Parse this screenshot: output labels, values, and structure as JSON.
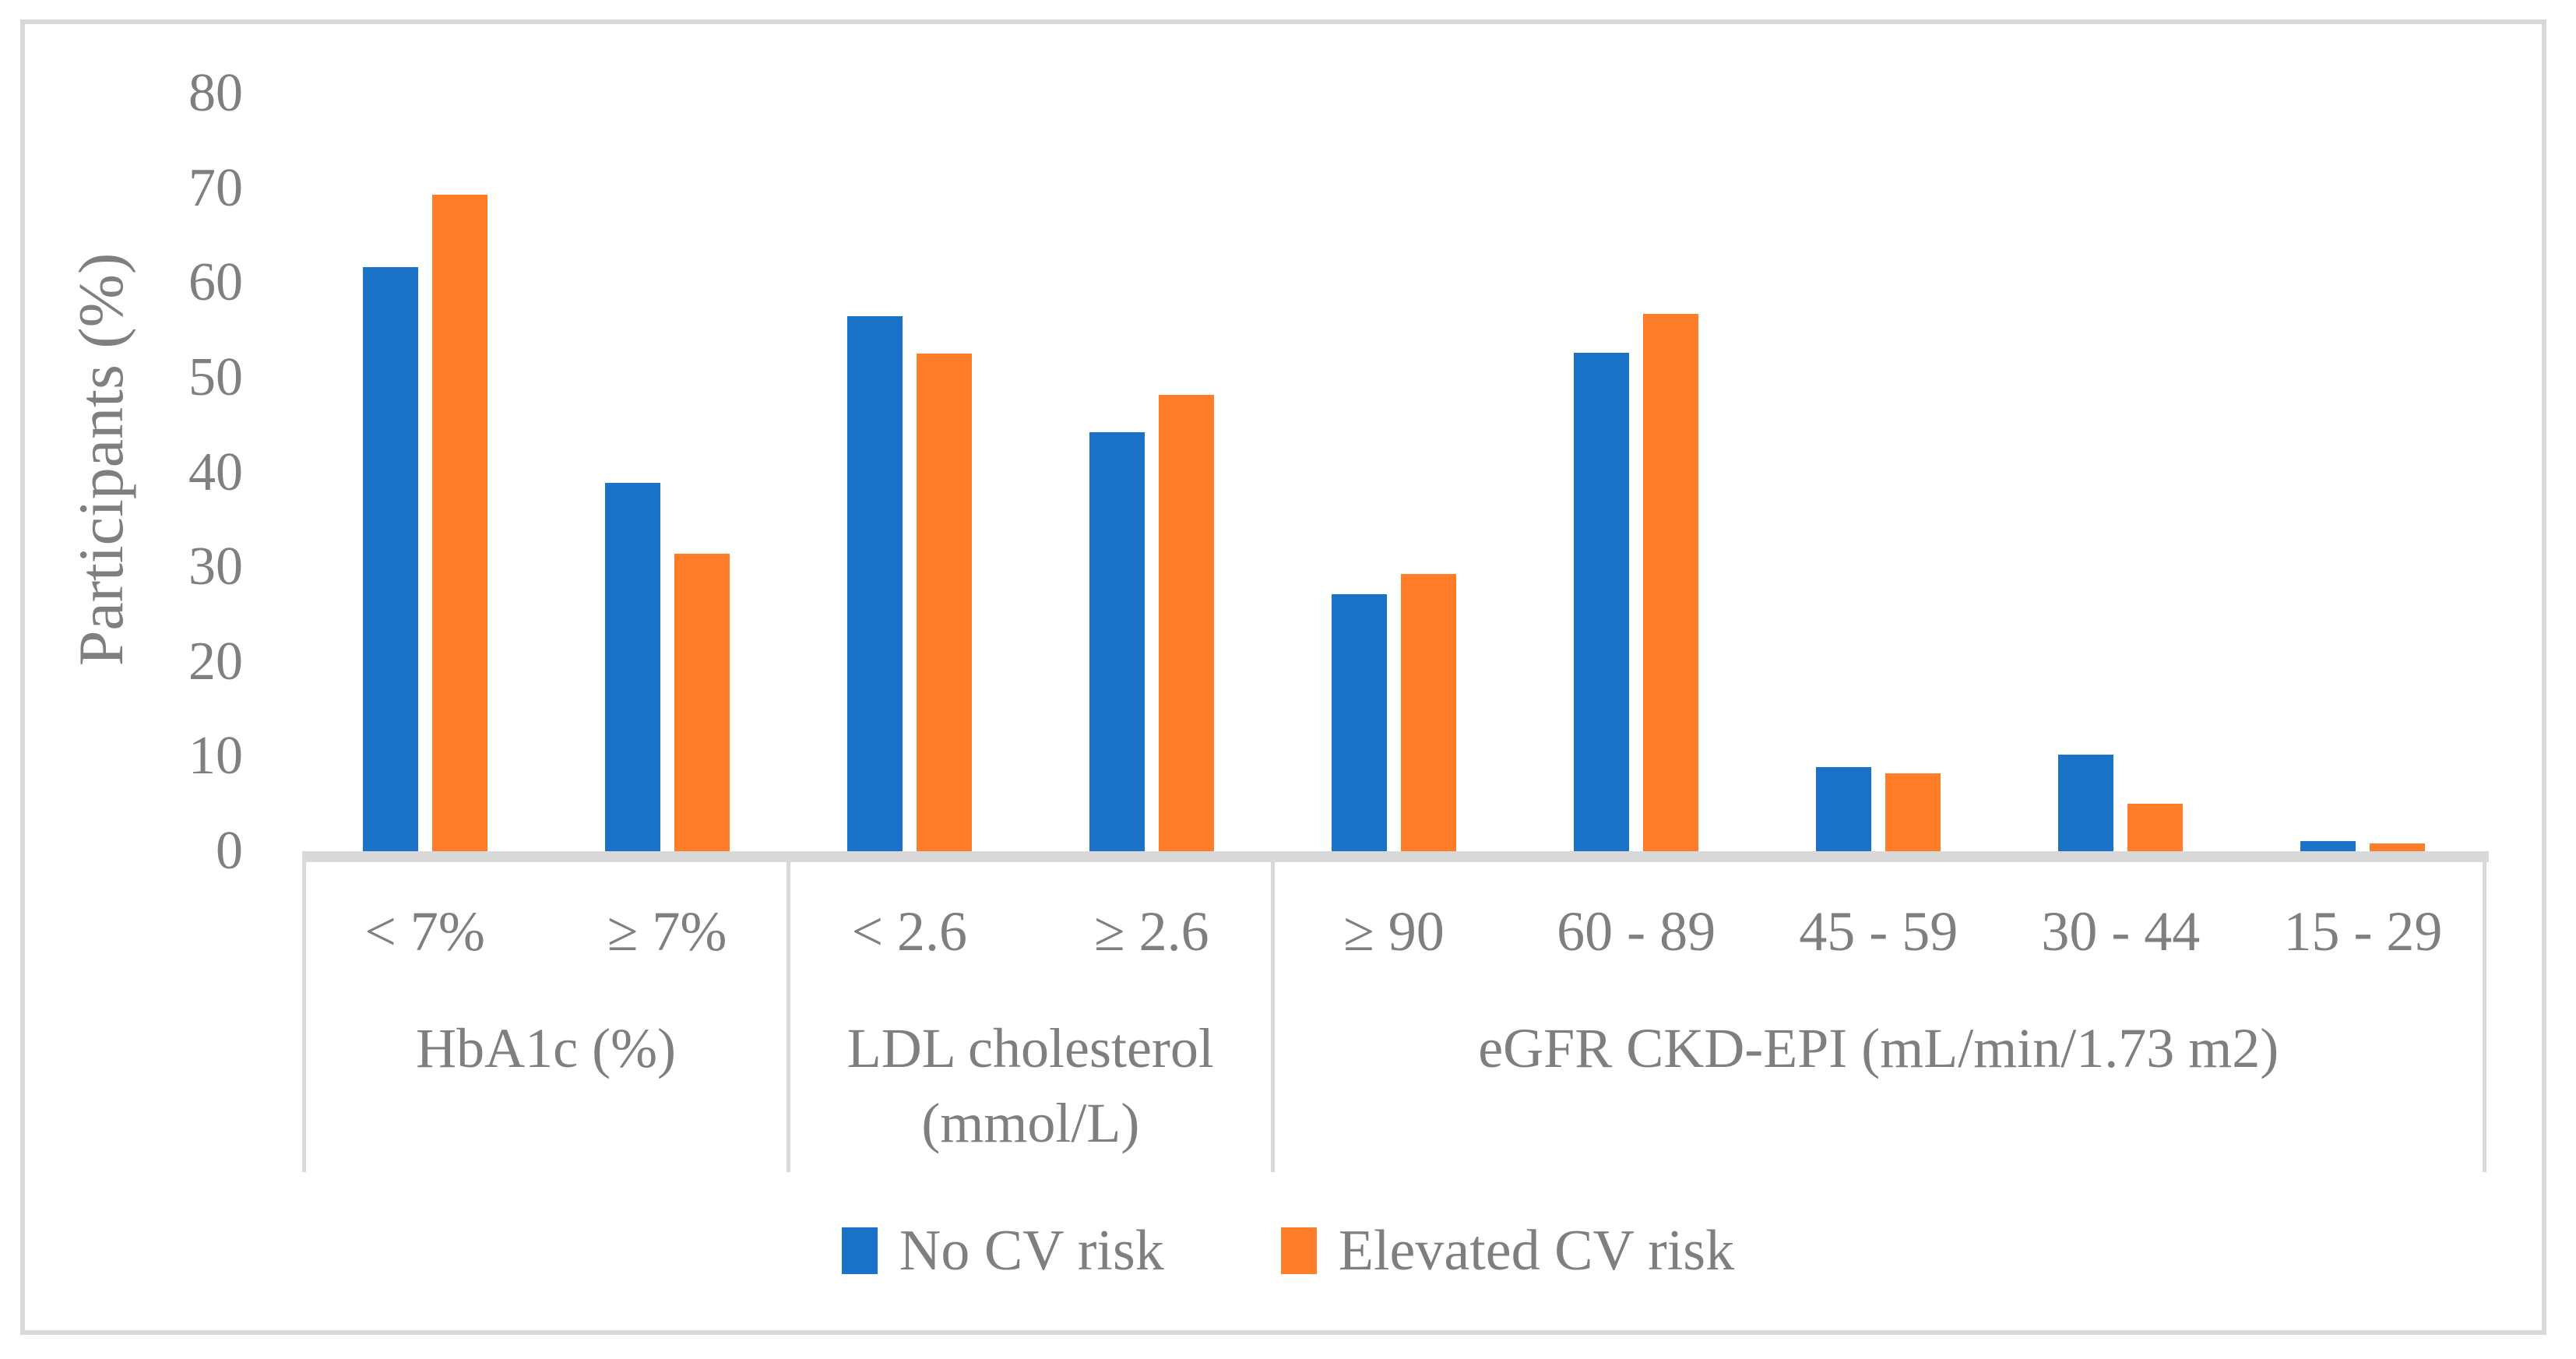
{
  "chart_data": {
    "type": "bar",
    "title": "",
    "xlabel": "",
    "ylabel": "Participants (%)",
    "ylim": [
      0,
      80
    ],
    "yticks": [
      0,
      10,
      20,
      30,
      40,
      50,
      60,
      70,
      80
    ],
    "grid": false,
    "legend_position": "bottom-center",
    "series": [
      {
        "name": "No CV risk",
        "color": "#1B73C7"
      },
      {
        "name": "Elevated CV risk",
        "color": "#FF7D28"
      }
    ],
    "groups": [
      {
        "label": "HbA1c (%)",
        "label_lines": [
          "HbA1c (%)"
        ],
        "categories": [
          {
            "label": "< 7%",
            "values": [
              61.7,
              69.3
            ]
          },
          {
            "label": "≥ 7%",
            "values": [
              38.9,
              31.4
            ]
          }
        ]
      },
      {
        "label": "LDL cholesterol (mmol/L)",
        "label_lines": [
          "LDL cholesterol",
          "(mmol/L)"
        ],
        "categories": [
          {
            "label": "< 2.6",
            "values": [
              56.5,
              52.5
            ]
          },
          {
            "label": "≥ 2.6",
            "values": [
              44.2,
              48.2
            ]
          }
        ]
      },
      {
        "label": "eGFR CKD-EPI (mL/min/1.73 m2)",
        "label_lines": [
          "eGFR CKD-EPI (mL/min/1.73 m2)"
        ],
        "categories": [
          {
            "label": "≥ 90",
            "values": [
              27.1,
              29.3
            ]
          },
          {
            "label": "60 - 89",
            "values": [
              52.6,
              56.7
            ]
          },
          {
            "label": "45 - 59",
            "values": [
              8.9,
              8.2
            ]
          },
          {
            "label": "30 - 44",
            "values": [
              10.2,
              5.0
            ]
          },
          {
            "label": "15 - 29",
            "values": [
              1.1,
              0.8
            ]
          }
        ]
      }
    ],
    "colors": {
      "text": "#7F7F7F",
      "axis_line": "#D9D9D9",
      "figure_border": "#D9D9D9"
    }
  }
}
